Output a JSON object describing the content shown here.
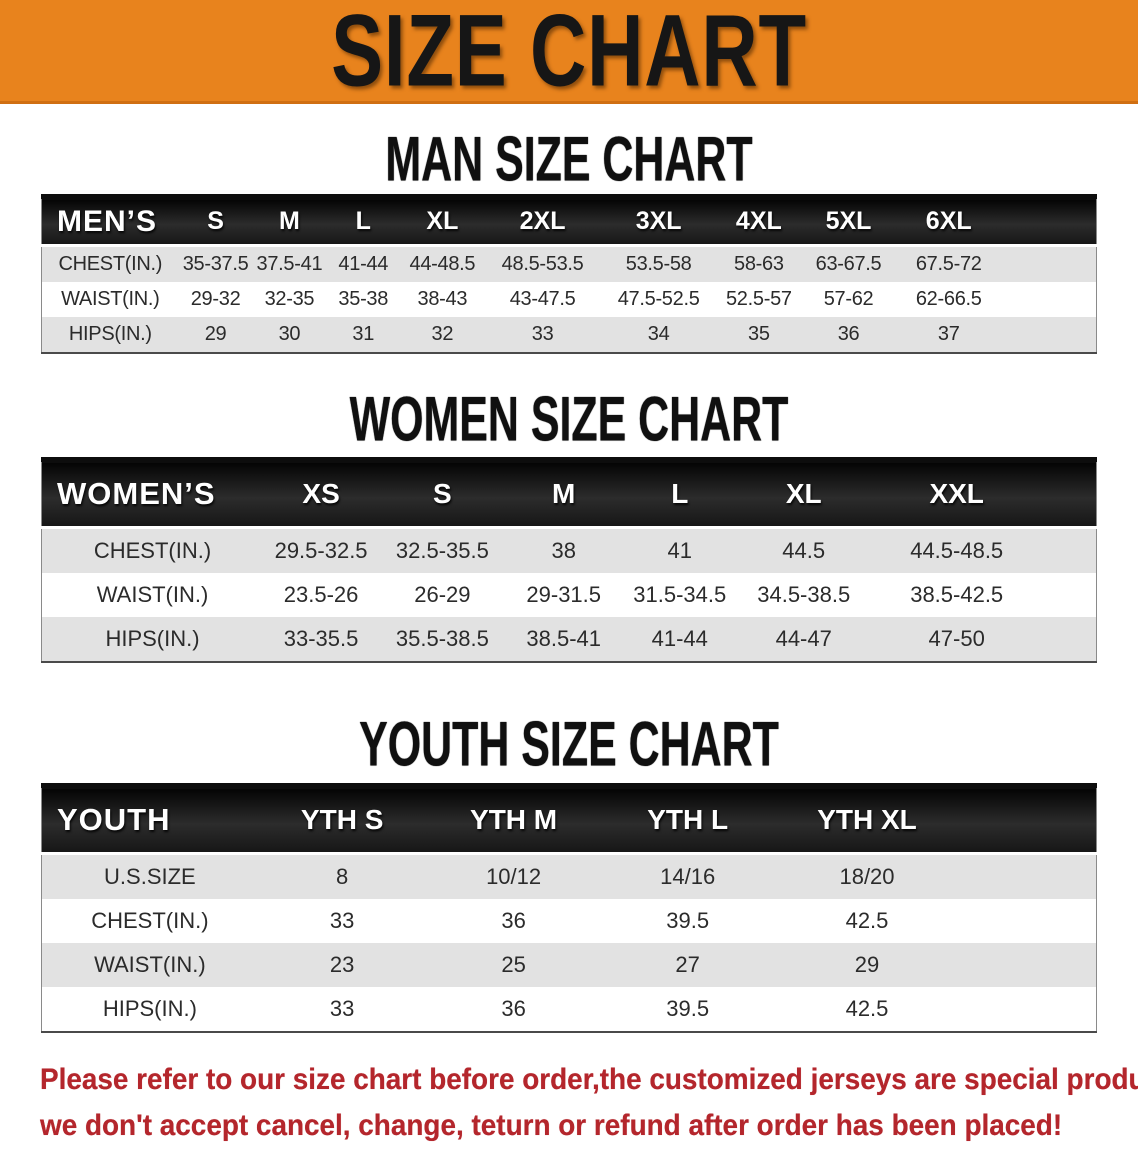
{
  "banner": {
    "title": "SIZE CHART",
    "background_color": "#E8831D",
    "text_color": "#161616"
  },
  "sections": [
    {
      "heading": "MAN SIZE CHART",
      "table": {
        "label": "MEN’S",
        "columns": [
          "S",
          "M",
          "L",
          "XL",
          "2XL",
          "3XL",
          "4XL",
          "5XL",
          "6XL"
        ],
        "rows": [
          {
            "label": "CHEST(IN.)",
            "values": [
              "35-37.5",
              "37.5-41",
              "41-44",
              "44-48.5",
              "48.5-53.5",
              "53.5-58",
              "58-63",
              "63-67.5",
              "67.5-72"
            ]
          },
          {
            "label": "WAIST(IN.)",
            "values": [
              "29-32",
              "32-35",
              "35-38",
              "38-43",
              "43-47.5",
              "47.5-52.5",
              "52.5-57",
              "57-62",
              "62-66.5"
            ]
          },
          {
            "label": "HIPS(IN.)",
            "values": [
              "29",
              "30",
              "31",
              "32",
              "33",
              "34",
              "35",
              "36",
              "37"
            ]
          }
        ]
      }
    },
    {
      "heading": "WOMEN SIZE CHART",
      "table": {
        "label": "WOMEN’S",
        "columns": [
          "XS",
          "S",
          "M",
          "L",
          "XL",
          "XXL"
        ],
        "rows": [
          {
            "label": "CHEST(IN.)",
            "values": [
              "29.5-32.5",
              "32.5-35.5",
              "38",
              "41",
              "44.5",
              "44.5-48.5"
            ]
          },
          {
            "label": "WAIST(IN.)",
            "values": [
              "23.5-26",
              "26-29",
              "29-31.5",
              "31.5-34.5",
              "34.5-38.5",
              "38.5-42.5"
            ]
          },
          {
            "label": "HIPS(IN.)",
            "values": [
              "33-35.5",
              "35.5-38.5",
              "38.5-41",
              "41-44",
              "44-47",
              "47-50"
            ]
          }
        ]
      }
    },
    {
      "heading": "YOUTH SIZE CHART",
      "table": {
        "label": "YOUTH",
        "columns": [
          "YTH S",
          "YTH M",
          "YTH L",
          "YTH XL"
        ],
        "rows": [
          {
            "label": "U.S.SIZE",
            "values": [
              "8",
              "10/12",
              "14/16",
              "18/20"
            ]
          },
          {
            "label": "CHEST(IN.)",
            "values": [
              "33",
              "36",
              "39.5",
              "42.5"
            ]
          },
          {
            "label": "WAIST(IN.)",
            "values": [
              "23",
              "25",
              "27",
              "29"
            ]
          },
          {
            "label": "HIPS(IN.)",
            "values": [
              "33",
              "36",
              "39.5",
              "42.5"
            ]
          }
        ]
      }
    }
  ],
  "footer": {
    "text_color": "#B4262C",
    "lines": [
      "Please refer to our size chart before order,the customized jerseys are special products,",
      "we don't accept cancel, change, teturn or refund after order has been placed!"
    ]
  },
  "colors": {
    "banner_orange": "#E8831D",
    "header_bar_black": "#151515",
    "row_alt_gray": "#E2E2E2",
    "value_text": "#2B2B2B",
    "disclaimer_red": "#B4262C"
  }
}
